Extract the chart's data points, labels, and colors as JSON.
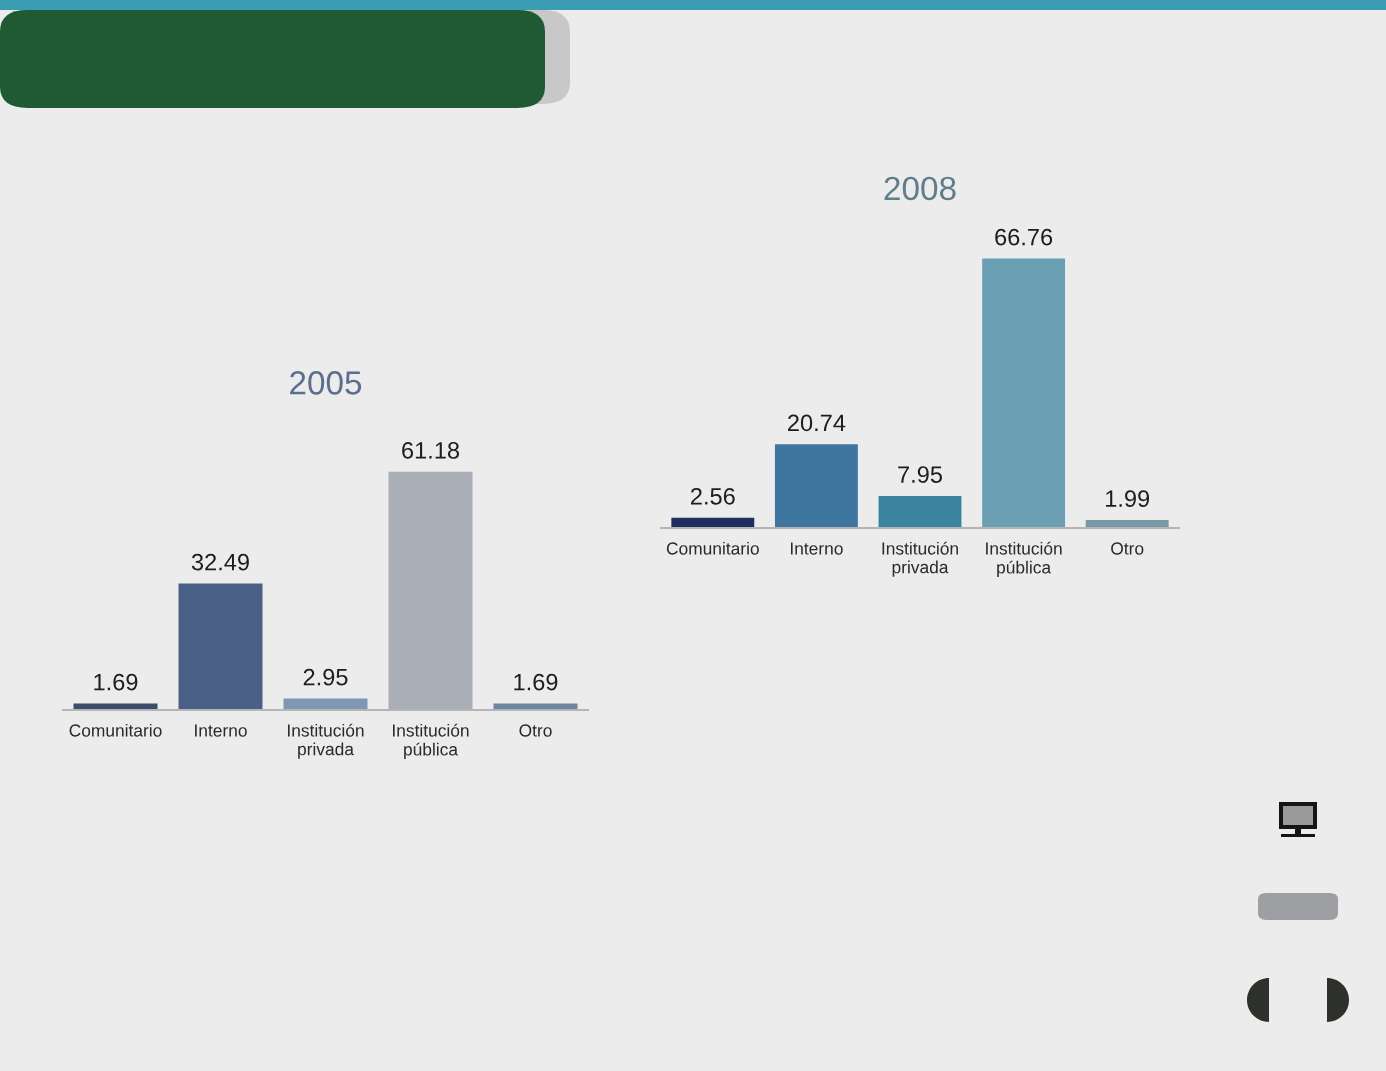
{
  "chart_data": [
    {
      "type": "bar",
      "title": "2005",
      "categories": [
        "Comunitario",
        "Interno",
        "Institución\nprivada",
        "Institución\npública",
        "Otro"
      ],
      "values": [
        1.69,
        32.49,
        2.95,
        61.18,
        1.69
      ],
      "colors": [
        "#3b4d6b",
        "#4a6087",
        "#8096b5",
        "#a9adb5",
        "#6f86a3"
      ],
      "data_labels": true,
      "tick_labels": "x"
    },
    {
      "type": "bar",
      "title": "2008",
      "categories": [
        "Comunitario",
        "Interno",
        "Institución\nprivada",
        "Institución\npública",
        "Otro"
      ],
      "values": [
        2.56,
        20.74,
        7.95,
        66.76,
        1.99
      ],
      "colors": [
        "#1c2f5e",
        "#3e76a0",
        "#3b84a0",
        "#6a9fb4",
        "#7898a6"
      ],
      "data_labels": true,
      "tick_labels": "x"
    }
  ]
}
